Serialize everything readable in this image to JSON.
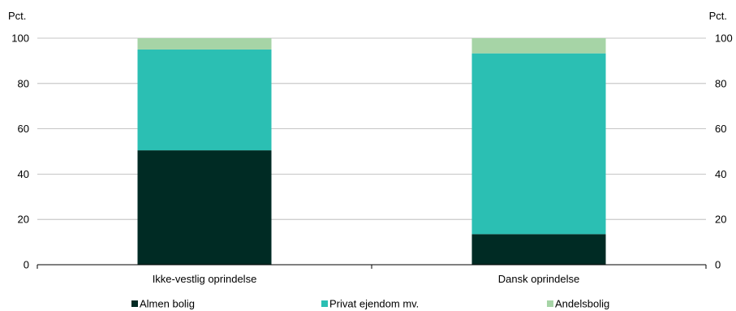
{
  "chart_data": {
    "type": "bar",
    "stacked": true,
    "y_unit_left": "Pct.",
    "y_unit_right": "Pct.",
    "ylim": [
      0,
      100
    ],
    "yticks": [
      0,
      20,
      40,
      60,
      80,
      100
    ],
    "categories": [
      "Ikke-vestlig oprindelse",
      "Dansk oprindelse"
    ],
    "series": [
      {
        "name": "Almen bolig",
        "color": "#002b24",
        "values": [
          50.5,
          13.5
        ]
      },
      {
        "name": "Privat ejendom mv.",
        "color": "#2bbfb3",
        "values": [
          44.5,
          79.8
        ]
      },
      {
        "name": "Andelsbolig",
        "color": "#a6d4a6",
        "values": [
          5.0,
          6.7
        ]
      }
    ],
    "grid": "horizontal",
    "legend_position": "bottom"
  }
}
